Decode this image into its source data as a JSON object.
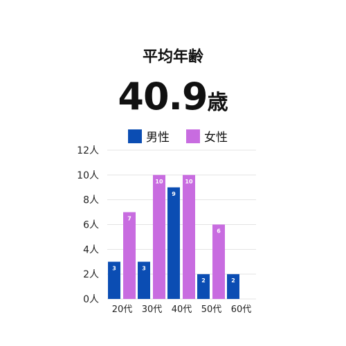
{
  "header": {
    "title": "平均年齢",
    "value": "40.9",
    "unit": "歳"
  },
  "chart_data": {
    "type": "bar",
    "categories": [
      "20代",
      "30代",
      "40代",
      "50代",
      "60代"
    ],
    "series": [
      {
        "name": "男性",
        "color": "#0b4db3",
        "values": [
          3,
          3,
          9,
          2,
          2
        ]
      },
      {
        "name": "女性",
        "color": "#c86ce0",
        "values": [
          7,
          10,
          10,
          6,
          0
        ]
      }
    ],
    "yticks": [
      "0人",
      "2人",
      "4人",
      "6人",
      "8人",
      "10人",
      "12人"
    ],
    "ylim": [
      0,
      12
    ],
    "grid": true,
    "legend": "top"
  }
}
